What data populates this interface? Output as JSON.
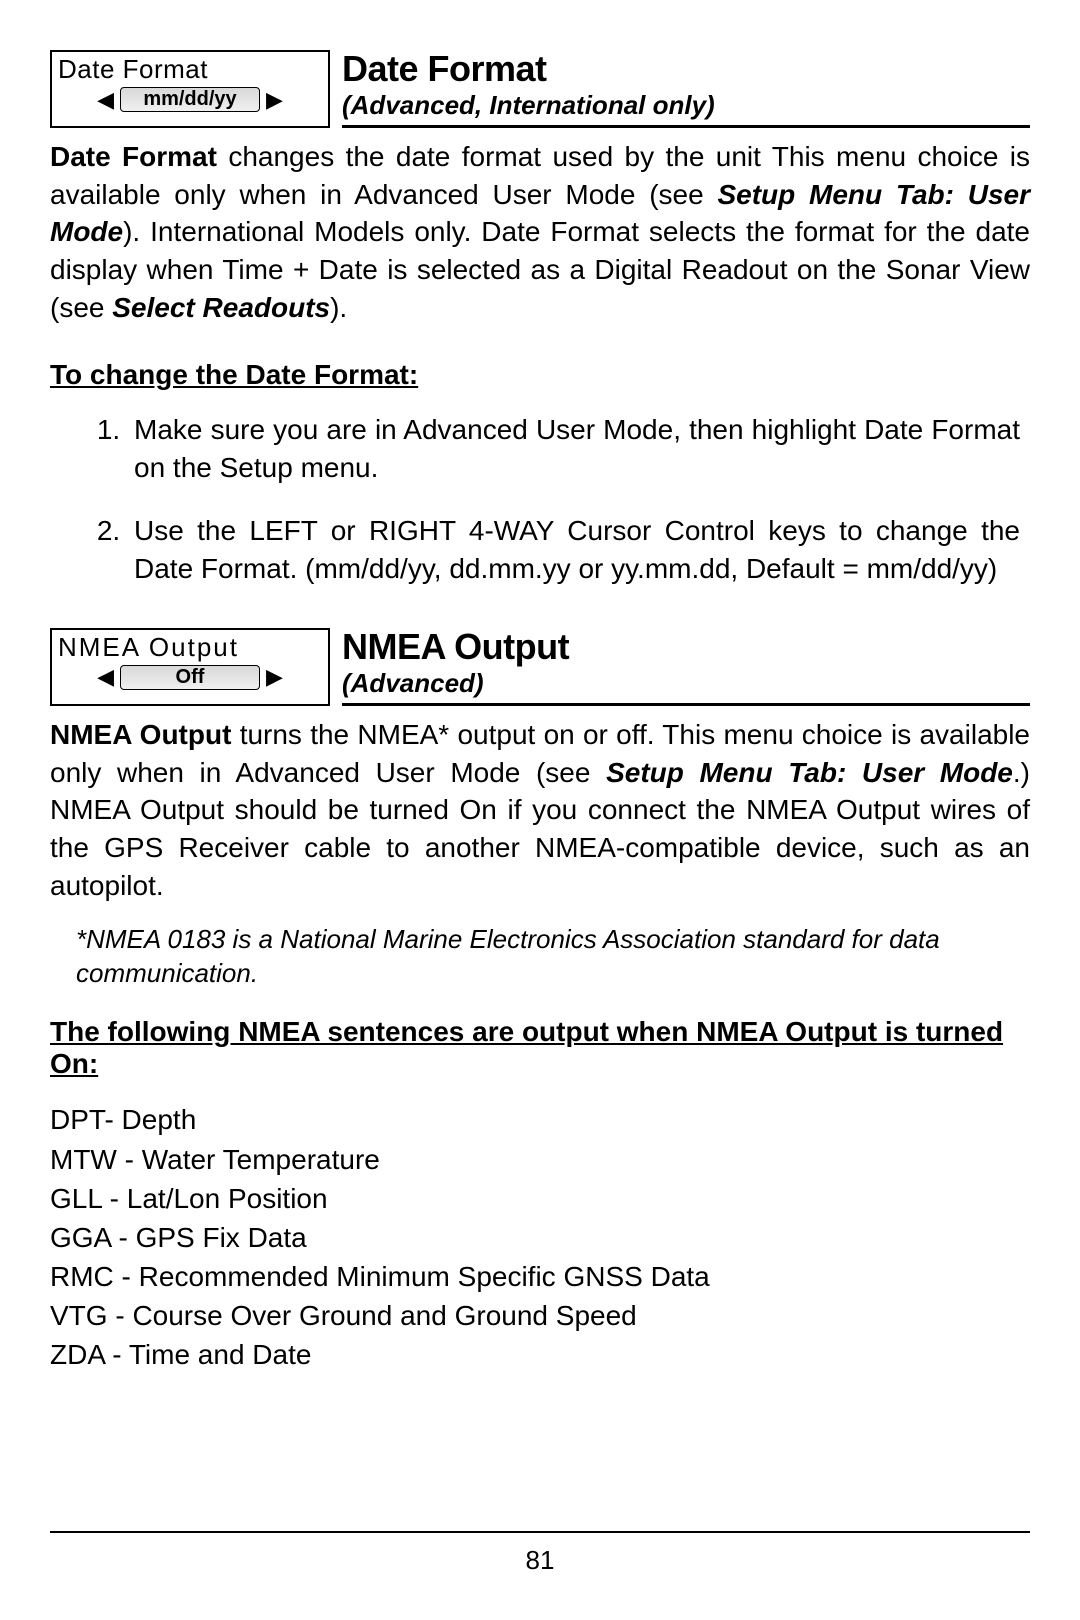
{
  "page_number": "81",
  "sections": [
    {
      "menu": {
        "label": "Date Format",
        "value": "mm/dd/yy"
      },
      "title": "Date Format",
      "subtitle": "(Advanced, International only)",
      "body_html": "<span class=\"b\">Date Format</span> changes the date format used by the unit  This menu choice is available only when in Advanced User Mode (see <span class=\"bi\">Setup Menu Tab: User Mode</span>).  International Models only. Date Format selects the format for the date display when Time + Date is selected as a Digital Readout on the Sonar View (see <span class=\"bi\">Select Readouts</span>).",
      "subhead": "To change the Date Format:",
      "steps": [
        "Make sure you are in Advanced User Mode, then highlight Date Format on the Setup menu.",
        "Use the LEFT or RIGHT 4-WAY Cursor Control keys to change the Date Format. (mm/dd/yy, dd.mm.yy or yy.mm.dd, Default = mm/dd/yy)"
      ]
    },
    {
      "menu": {
        "label": "NMEA Output",
        "value": "Off"
      },
      "title": "NMEA Output",
      "subtitle": "(Advanced)",
      "body_html": "<span class=\"b\">NMEA Output</span> turns the NMEA* output on or off.  This menu choice is available only when in Advanced User Mode (see <span class=\"bi\">Setup Menu Tab: User Mode</span>.) NMEA Output should be turned On if you connect the NMEA Output wires of the GPS Receiver cable to another NMEA-compatible device, such as an autopilot.",
      "footnote": "*NMEA 0183 is a National Marine Electronics Association standard for data communication.",
      "subhead": "The following NMEA sentences are output when NMEA Output is turned On:",
      "sentences": [
        "DPT- Depth",
        "MTW - Water Temperature",
        "GLL - Lat/Lon Position",
        "GGA - GPS Fix Data",
        "RMC - Recommended Minimum Specific GNSS Data",
        "VTG - Course Over Ground and Ground Speed",
        "ZDA - Time and Date"
      ]
    }
  ]
}
